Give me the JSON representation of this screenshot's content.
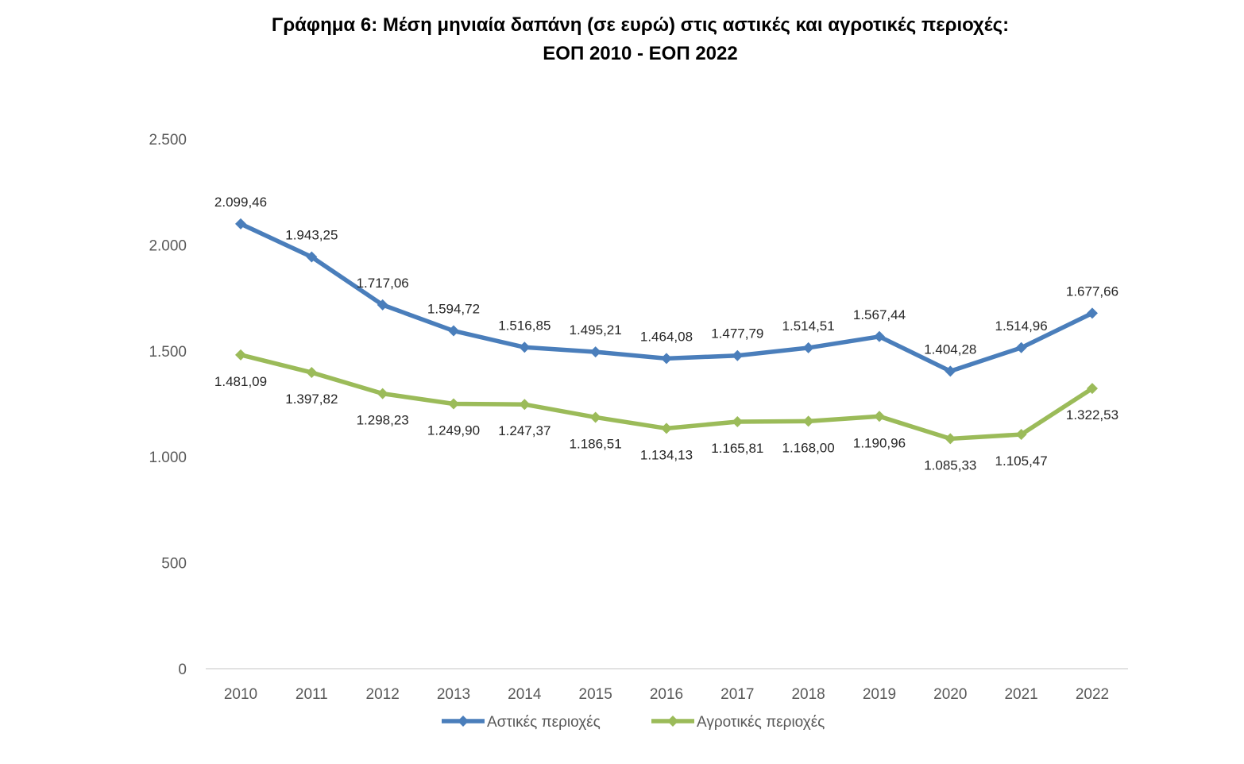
{
  "chart_data": {
    "type": "line",
    "title": "Γράφημα 6: Μέση μηνιαία δαπάνη (σε ευρώ) στις αστικές και αγροτικές περιοχές:",
    "subtitle": "ΕΟΠ 2010 - ΕΟΠ  2022",
    "xlabel": "",
    "ylabel": "",
    "categories": [
      "2010",
      "2011",
      "2012",
      "2013",
      "2014",
      "2015",
      "2016",
      "2017",
      "2018",
      "2019",
      "2020",
      "2021",
      "2022"
    ],
    "ylim": [
      0,
      2500
    ],
    "yticks": [
      0,
      500,
      1000,
      1500,
      2000,
      2500
    ],
    "ytick_labels": [
      "0",
      "500",
      "1.000",
      "1.500",
      "2.000",
      "2.500"
    ],
    "grid": false,
    "legend_position": "bottom",
    "series": [
      {
        "name": "Αστικές περιοχές",
        "color": "#4a7ebb",
        "marker": "diamond",
        "values": [
          2099.46,
          1943.25,
          1717.06,
          1594.72,
          1516.85,
          1495.21,
          1464.08,
          1477.79,
          1514.51,
          1567.44,
          1404.28,
          1514.96,
          1677.66
        ],
        "labels": [
          "2.099,46",
          "1.943,25",
          "1.717,06",
          "1.594,72",
          "1.516,85",
          "1.495,21",
          "1.464,08",
          "1.477,79",
          "1.514,51",
          "1.567,44",
          "1.404,28",
          "1.514,96",
          "1.677,66"
        ],
        "label_position": "above"
      },
      {
        "name": "Αγροτικές περιοχές",
        "color": "#9bbb59",
        "marker": "diamond",
        "values": [
          1481.09,
          1397.82,
          1298.23,
          1249.9,
          1247.37,
          1186.51,
          1134.13,
          1165.81,
          1168.0,
          1190.96,
          1085.33,
          1105.47,
          1322.53
        ],
        "labels": [
          "1.481,09",
          "1.397,82",
          "1.298,23",
          "1.249,90",
          "1.247,37",
          "1.186,51",
          "1.134,13",
          "1.165,81",
          "1.168,00",
          "1.190,96",
          "1.085,33",
          "1.105,47",
          "1.322,53"
        ],
        "label_position": "below"
      }
    ]
  }
}
